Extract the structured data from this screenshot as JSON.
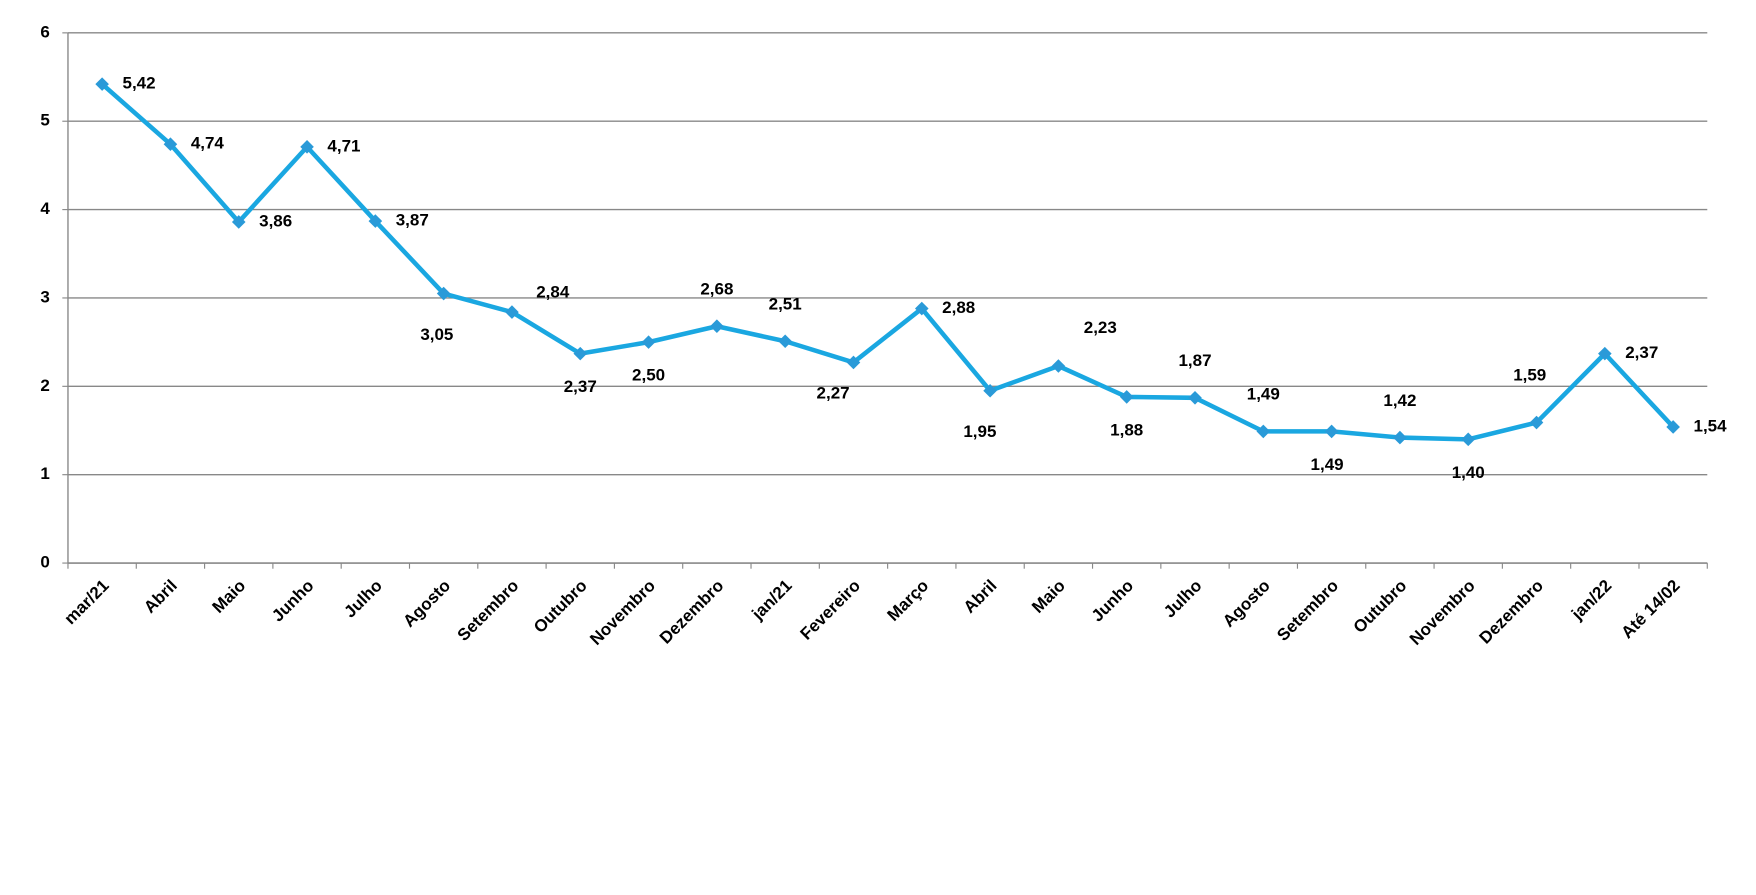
{
  "chart_data": {
    "type": "line",
    "categories": [
      "mar/21",
      "Abril",
      "Maio",
      "Junho",
      "Julho",
      "Agosto",
      "Setembro",
      "Outubro",
      "Novembro",
      "Dezembro",
      "jan/21",
      "Fevereiro",
      "Março",
      "Abril",
      "Maio",
      "Junho",
      "Julho",
      "Agosto",
      "Setembro",
      "Outubro",
      "Novembro",
      "Dezembro",
      "jan/22",
      "Até 14/02"
    ],
    "series": [
      {
        "color": "#1aa7e1",
        "marker_color": "#2a9ad8",
        "values": [
          5.42,
          4.74,
          3.86,
          4.71,
          3.87,
          3.05,
          2.84,
          2.37,
          2.5,
          2.68,
          2.51,
          2.27,
          2.88,
          1.95,
          2.23,
          1.88,
          1.87,
          1.49,
          1.49,
          1.42,
          1.4,
          1.59,
          2.37,
          1.54
        ],
        "value_labels": [
          "5,42",
          "4,74",
          "3,86",
          "4,71",
          "3,87",
          "3,05",
          "2,84",
          "2,37",
          "2,50",
          "2,68",
          "2,51",
          "2,27",
          "2,88",
          "1,95",
          "2,23",
          "1,88",
          "1,87",
          "1,49",
          "1,49",
          "1,42",
          "1,40",
          "1,59",
          "2,37",
          "1,54"
        ]
      }
    ],
    "ylim": [
      0,
      6
    ],
    "yticks": [
      0,
      1,
      2,
      3,
      4,
      5,
      6
    ],
    "grid": true
  }
}
